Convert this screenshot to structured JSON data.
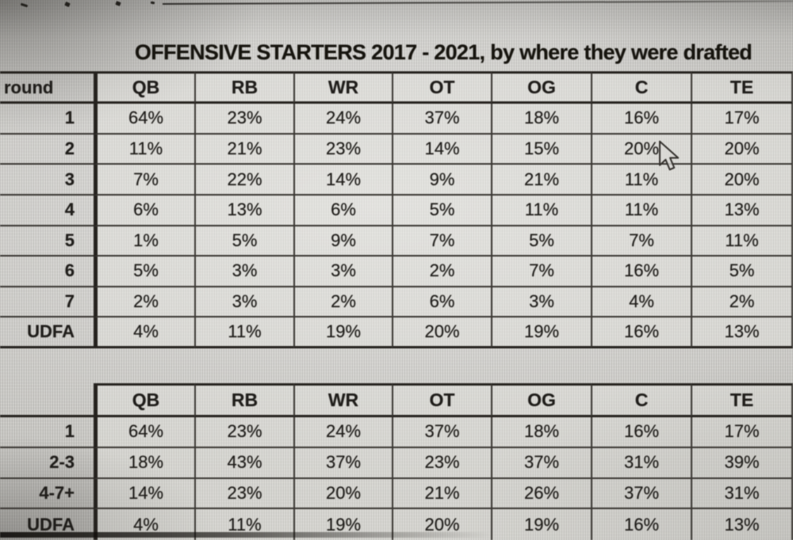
{
  "title": "OFFENSIVE STARTERS 2017 - 2021, by where they were drafted",
  "cursor_icon": "arrow-pointer",
  "chart_data": [
    {
      "type": "table",
      "name": "starters-by-draft-round",
      "corner_label": "round",
      "columns": [
        "QB",
        "RB",
        "WR",
        "OT",
        "OG",
        "C",
        "TE"
      ],
      "rows": [
        {
          "label": "1",
          "values": [
            "64%",
            "23%",
            "24%",
            "37%",
            "18%",
            "16%",
            "17%"
          ]
        },
        {
          "label": "2",
          "values": [
            "11%",
            "21%",
            "23%",
            "14%",
            "15%",
            "20%",
            "20%"
          ]
        },
        {
          "label": "3",
          "values": [
            "7%",
            "22%",
            "14%",
            "9%",
            "21%",
            "11%",
            "20%"
          ]
        },
        {
          "label": "4",
          "values": [
            "6%",
            "13%",
            "6%",
            "5%",
            "11%",
            "11%",
            "13%"
          ]
        },
        {
          "label": "5",
          "values": [
            "1%",
            "5%",
            "9%",
            "7%",
            "5%",
            "7%",
            "11%"
          ]
        },
        {
          "label": "6",
          "values": [
            "5%",
            "3%",
            "3%",
            "2%",
            "7%",
            "16%",
            "5%"
          ]
        },
        {
          "label": "7",
          "values": [
            "2%",
            "3%",
            "2%",
            "6%",
            "3%",
            "4%",
            "2%"
          ]
        },
        {
          "label": "UDFA",
          "values": [
            "4%",
            "11%",
            "19%",
            "20%",
            "19%",
            "16%",
            "13%"
          ]
        }
      ]
    },
    {
      "type": "table",
      "name": "starters-by-draft-round-grouped",
      "corner_label": "",
      "columns": [
        "QB",
        "RB",
        "WR",
        "OT",
        "OG",
        "C",
        "TE"
      ],
      "rows": [
        {
          "label": "1",
          "values": [
            "64%",
            "23%",
            "24%",
            "37%",
            "18%",
            "16%",
            "17%"
          ]
        },
        {
          "label": "2-3",
          "values": [
            "18%",
            "43%",
            "37%",
            "23%",
            "37%",
            "31%",
            "39%"
          ]
        },
        {
          "label": "4-7+",
          "values": [
            "14%",
            "23%",
            "20%",
            "21%",
            "26%",
            "37%",
            "31%"
          ]
        },
        {
          "label": "UDFA",
          "values": [
            "4%",
            "11%",
            "19%",
            "20%",
            "19%",
            "16%",
            "13%"
          ]
        }
      ]
    }
  ]
}
